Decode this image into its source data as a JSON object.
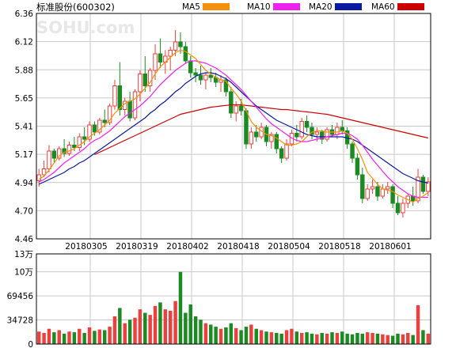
{
  "stock": {
    "title": "标准股份(600302)"
  },
  "watermark": "SOHU.com",
  "legend": [
    {
      "label": "MA5",
      "color": "#f5900a"
    },
    {
      "label": "MA10",
      "color": "#ee22ee"
    },
    {
      "label": "MA20",
      "color": "#0a1aa0"
    },
    {
      "label": "MA60",
      "color": "#cc0000"
    }
  ],
  "colors": {
    "up": "#e8413f",
    "down": "#1c8a23",
    "grid": "#c8c8c8"
  },
  "chart_data": [
    {
      "type": "candlestick",
      "title": "",
      "ylim": [
        4.46,
        6.36
      ],
      "price_ticks": [
        "6.36",
        "6.12",
        "5.88",
        "5.65",
        "5.41",
        "5.17",
        "4.94",
        "4.70",
        "4.46"
      ],
      "date_ticks": [
        "20180305",
        "20180319",
        "20180402",
        "20180418",
        "20180504",
        "20180518",
        "20180601"
      ],
      "grid": true,
      "candles": [
        [
          4.95,
          5.05,
          4.9,
          5.0
        ],
        [
          5.0,
          5.12,
          4.98,
          5.05
        ],
        [
          5.05,
          5.25,
          5.02,
          5.2
        ],
        [
          5.2,
          5.22,
          5.1,
          5.14
        ],
        [
          5.14,
          5.24,
          5.12,
          5.22
        ],
        [
          5.22,
          5.3,
          5.15,
          5.18
        ],
        [
          5.18,
          5.28,
          5.16,
          5.25
        ],
        [
          5.25,
          5.32,
          5.2,
          5.23
        ],
        [
          5.23,
          5.35,
          5.2,
          5.32
        ],
        [
          5.32,
          5.4,
          5.25,
          5.3
        ],
        [
          5.3,
          5.45,
          5.28,
          5.42
        ],
        [
          5.42,
          5.45,
          5.33,
          5.36
        ],
        [
          5.36,
          5.48,
          5.34,
          5.46
        ],
        [
          5.46,
          5.55,
          5.4,
          5.44
        ],
        [
          5.44,
          5.6,
          5.42,
          5.58
        ],
        [
          5.58,
          5.8,
          5.55,
          5.75
        ],
        [
          5.75,
          5.95,
          5.5,
          5.55
        ],
        [
          5.55,
          5.65,
          5.5,
          5.62
        ],
        [
          5.62,
          5.7,
          5.45,
          5.48
        ],
        [
          5.48,
          5.72,
          5.46,
          5.7
        ],
        [
          5.7,
          5.88,
          5.62,
          5.85
        ],
        [
          5.85,
          6.0,
          5.7,
          5.75
        ],
        [
          5.75,
          5.9,
          5.7,
          5.88
        ],
        [
          5.88,
          6.1,
          5.8,
          6.02
        ],
        [
          6.02,
          6.15,
          5.9,
          5.95
        ],
        [
          5.95,
          6.05,
          5.85,
          6.0
        ],
        [
          6.0,
          6.08,
          5.88,
          6.05
        ],
        [
          6.05,
          6.22,
          6.0,
          6.12
        ],
        [
          6.12,
          6.2,
          6.02,
          6.08
        ],
        [
          6.08,
          6.12,
          5.94,
          5.96
        ],
        [
          5.96,
          6.0,
          5.82,
          5.86
        ],
        [
          5.86,
          5.9,
          5.78,
          5.84
        ],
        [
          5.84,
          5.92,
          5.76,
          5.8
        ],
        [
          5.8,
          5.86,
          5.72,
          5.84
        ],
        [
          5.84,
          5.9,
          5.78,
          5.82
        ],
        [
          5.82,
          5.86,
          5.74,
          5.78
        ],
        [
          5.78,
          5.84,
          5.7,
          5.8
        ],
        [
          5.8,
          5.82,
          5.66,
          5.7
        ],
        [
          5.7,
          5.74,
          5.48,
          5.52
        ],
        [
          5.52,
          5.62,
          5.45,
          5.58
        ],
        [
          5.58,
          5.64,
          5.5,
          5.54
        ],
        [
          5.54,
          5.56,
          5.22,
          5.26
        ],
        [
          5.26,
          5.4,
          5.22,
          5.36
        ],
        [
          5.36,
          5.42,
          5.28,
          5.32
        ],
        [
          5.32,
          5.44,
          5.3,
          5.4
        ],
        [
          5.4,
          5.42,
          5.24,
          5.28
        ],
        [
          5.28,
          5.36,
          5.22,
          5.34
        ],
        [
          5.34,
          5.36,
          5.18,
          5.22
        ],
        [
          5.22,
          5.24,
          5.1,
          5.14
        ],
        [
          5.14,
          5.3,
          5.12,
          5.26
        ],
        [
          5.26,
          5.38,
          5.24,
          5.35
        ],
        [
          5.35,
          5.42,
          5.28,
          5.32
        ],
        [
          5.32,
          5.48,
          5.3,
          5.45
        ],
        [
          5.45,
          5.5,
          5.36,
          5.4
        ],
        [
          5.4,
          5.44,
          5.3,
          5.34
        ],
        [
          5.34,
          5.4,
          5.28,
          5.36
        ],
        [
          5.36,
          5.38,
          5.26,
          5.3
        ],
        [
          5.3,
          5.4,
          5.28,
          5.38
        ],
        [
          5.38,
          5.42,
          5.32,
          5.34
        ],
        [
          5.34,
          5.44,
          5.3,
          5.4
        ],
        [
          5.4,
          5.46,
          5.34,
          5.37
        ],
        [
          5.37,
          5.4,
          5.22,
          5.26
        ],
        [
          5.26,
          5.28,
          5.1,
          5.14
        ],
        [
          5.14,
          5.18,
          4.96,
          5.0
        ],
        [
          5.0,
          5.06,
          4.76,
          4.8
        ],
        [
          4.8,
          4.92,
          4.78,
          4.88
        ],
        [
          4.88,
          4.96,
          4.84,
          4.9
        ],
        [
          4.9,
          4.94,
          4.78,
          4.82
        ],
        [
          4.82,
          4.92,
          4.8,
          4.88
        ],
        [
          4.88,
          4.94,
          4.84,
          4.9
        ],
        [
          4.9,
          4.92,
          4.72,
          4.76
        ],
        [
          4.76,
          4.82,
          4.66,
          4.68
        ],
        [
          4.68,
          4.8,
          4.64,
          4.76
        ],
        [
          4.76,
          4.84,
          4.72,
          4.82
        ],
        [
          4.82,
          4.9,
          4.74,
          4.78
        ],
        [
          4.78,
          5.05,
          4.76,
          4.98
        ],
        [
          4.98,
          5.0,
          4.84,
          4.86
        ],
        [
          4.86,
          4.98,
          4.82,
          4.94
        ]
      ],
      "ma5": [
        4.96,
        4.99,
        5.04,
        5.1,
        5.16,
        5.19,
        5.2,
        5.22,
        5.25,
        5.28,
        5.32,
        5.35,
        5.38,
        5.42,
        5.46,
        5.52,
        5.56,
        5.6,
        5.62,
        5.64,
        5.68,
        5.73,
        5.78,
        5.85,
        5.91,
        5.95,
        5.99,
        6.03,
        6.05,
        6.04,
        6.01,
        5.98,
        5.93,
        5.88,
        5.85,
        5.82,
        5.8,
        5.79,
        5.73,
        5.68,
        5.62,
        5.54,
        5.45,
        5.4,
        5.37,
        5.34,
        5.33,
        5.31,
        5.28,
        5.25,
        5.25,
        5.26,
        5.28,
        5.32,
        5.36,
        5.37,
        5.37,
        5.36,
        5.36,
        5.36,
        5.37,
        5.35,
        5.3,
        5.22,
        5.13,
        5.02,
        4.97,
        4.92,
        4.88,
        4.87,
        4.86,
        4.83,
        4.81,
        4.79,
        4.77,
        4.8,
        4.82,
        4.85
      ],
      "ma10": [
        4.94,
        4.96,
        4.99,
        5.02,
        5.06,
        5.1,
        5.13,
        5.16,
        5.19,
        5.22,
        5.26,
        5.29,
        5.31,
        5.34,
        5.37,
        5.41,
        5.45,
        5.49,
        5.52,
        5.55,
        5.58,
        5.62,
        5.66,
        5.71,
        5.76,
        5.8,
        5.84,
        5.88,
        5.91,
        5.94,
        5.96,
        5.96,
        5.95,
        5.94,
        5.92,
        5.9,
        5.87,
        5.84,
        5.8,
        5.76,
        5.72,
        5.67,
        5.62,
        5.57,
        5.52,
        5.47,
        5.43,
        5.4,
        5.37,
        5.34,
        5.31,
        5.29,
        5.28,
        5.28,
        5.29,
        5.3,
        5.31,
        5.32,
        5.33,
        5.34,
        5.35,
        5.35,
        5.33,
        5.3,
        5.25,
        5.19,
        5.13,
        5.08,
        5.03,
        4.98,
        4.94,
        4.9,
        4.87,
        4.84,
        4.82,
        4.81,
        4.81,
        4.81
      ],
      "ma20": [
        4.92,
        4.94,
        4.96,
        4.98,
        5.0,
        5.02,
        5.05,
        5.07,
        5.1,
        5.12,
        5.15,
        5.18,
        5.21,
        5.24,
        5.27,
        5.3,
        5.33,
        5.36,
        5.39,
        5.42,
        5.45,
        5.48,
        5.52,
        5.55,
        5.59,
        5.62,
        5.66,
        5.7,
        5.73,
        5.77,
        5.8,
        5.83,
        5.85,
        5.86,
        5.86,
        5.85,
        5.83,
        5.81,
        5.78,
        5.74,
        5.7,
        5.66,
        5.62,
        5.58,
        5.55,
        5.52,
        5.49,
        5.46,
        5.44,
        5.42,
        5.4,
        5.38,
        5.36,
        5.34,
        5.33,
        5.32,
        5.32,
        5.32,
        5.32,
        5.32,
        5.32,
        5.31,
        5.3,
        5.28,
        5.25,
        5.22,
        5.19,
        5.16,
        5.13,
        5.1,
        5.07,
        5.04,
        5.01,
        4.99,
        4.97,
        4.95,
        4.94,
        4.93
      ],
      "ma60": [
        null,
        null,
        null,
        null,
        null,
        null,
        null,
        null,
        null,
        null,
        null,
        5.17,
        5.19,
        5.21,
        5.23,
        5.25,
        5.27,
        5.29,
        5.31,
        5.33,
        5.35,
        5.37,
        5.39,
        5.41,
        5.43,
        5.45,
        5.47,
        5.49,
        5.51,
        5.52,
        5.53,
        5.54,
        5.55,
        5.56,
        5.57,
        5.575,
        5.58,
        5.585,
        5.59,
        5.59,
        5.59,
        5.585,
        5.58,
        5.575,
        5.57,
        5.565,
        5.56,
        5.555,
        5.55,
        5.55,
        5.545,
        5.54,
        5.535,
        5.53,
        5.525,
        5.52,
        5.515,
        5.51,
        5.5,
        5.49,
        5.48,
        5.47,
        5.46,
        5.45,
        5.44,
        5.43,
        5.42,
        5.41,
        5.4,
        5.39,
        5.38,
        5.37,
        5.36,
        5.35,
        5.34,
        5.33,
        5.32,
        5.31
      ]
    },
    {
      "type": "bar",
      "title": "",
      "ylim": [
        0,
        130000
      ],
      "vol_ticks": [
        {
          "label": "13万",
          "value": 130000
        },
        {
          "label": "10万",
          "value": 104184
        },
        {
          "label": "69456",
          "value": 69456
        },
        {
          "label": "34728",
          "value": 34728
        },
        {
          "label": "0",
          "value": 0
        }
      ],
      "volumes": [
        18000,
        16000,
        22000,
        17000,
        20000,
        15000,
        18000,
        17000,
        22000,
        16000,
        24000,
        19000,
        21000,
        20000,
        25000,
        40000,
        52000,
        30000,
        35000,
        38000,
        50000,
        45000,
        42000,
        55000,
        60000,
        50000,
        48000,
        62000,
        104000,
        45000,
        57000,
        40000,
        35000,
        30000,
        28000,
        25000,
        22000,
        24000,
        30000,
        23000,
        20000,
        25000,
        28000,
        22000,
        20000,
        18000,
        17000,
        16000,
        15000,
        20000,
        22000,
        18000,
        16000,
        17000,
        15000,
        14000,
        16000,
        15000,
        17000,
        16000,
        18000,
        15000,
        14000,
        16000,
        15000,
        17000,
        16000,
        15000,
        14000,
        13000,
        12000,
        15000,
        14000,
        16000,
        13000,
        56000,
        20000,
        15000
      ]
    }
  ]
}
